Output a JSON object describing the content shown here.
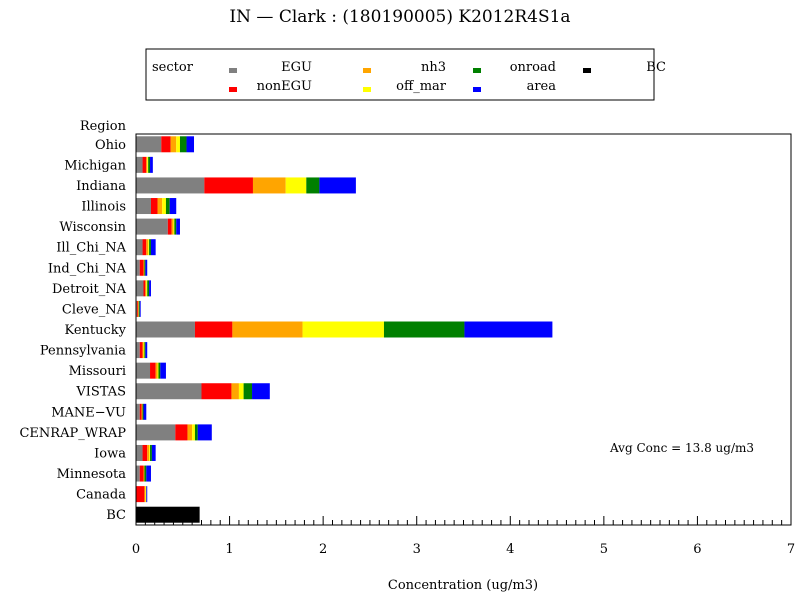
{
  "chart_data": {
    "type": "bar",
    "orientation": "horizontal",
    "stacked": true,
    "title": "IN  —  Clark : (180190005) K2012R4S1a",
    "xlabel": "Concentration  (ug/m3)",
    "ylabel": "Region",
    "xlim": [
      0,
      7
    ],
    "x_ticks": [
      0,
      1,
      2,
      3,
      4,
      5,
      6,
      7
    ],
    "grid": false,
    "legend_position": "top",
    "legend_header": "sector",
    "annotation": "Avg Conc  =  13.8 ug/m3",
    "categories": [
      "Ohio",
      "Michigan",
      "Indiana",
      "Illinois",
      "Wisconsin",
      "Ill_Chi_NA",
      "Ind_Chi_NA",
      "Detroit_NA",
      "Cleve_NA",
      "Kentucky",
      "Pennsylvania",
      "Missouri",
      "VISTAS",
      "MANE−VU",
      "CENRAP_WRAP",
      "Iowa",
      "Minnesota",
      "Canada",
      "BC"
    ],
    "series": [
      {
        "name": "EGU",
        "color": "#808080",
        "values": [
          0.27,
          0.07,
          0.73,
          0.16,
          0.34,
          0.07,
          0.04,
          0.08,
          0.01,
          0.63,
          0.04,
          0.15,
          0.7,
          0.04,
          0.42,
          0.07,
          0.04,
          0.0,
          0.0
        ]
      },
      {
        "name": "nonEGU",
        "color": "#ff0000",
        "values": [
          0.1,
          0.04,
          0.52,
          0.07,
          0.04,
          0.04,
          0.04,
          0.02,
          0.01,
          0.4,
          0.03,
          0.06,
          0.32,
          0.02,
          0.13,
          0.05,
          0.04,
          0.09,
          0.0
        ]
      },
      {
        "name": "nh3",
        "color": "#ffa500",
        "values": [
          0.06,
          0.01,
          0.35,
          0.05,
          0.02,
          0.02,
          0.01,
          0.01,
          0.01,
          0.75,
          0.01,
          0.02,
          0.08,
          0.01,
          0.05,
          0.02,
          0.01,
          0.01,
          0.0
        ]
      },
      {
        "name": "off_mar",
        "color": "#ffff00",
        "values": [
          0.04,
          0.01,
          0.22,
          0.04,
          0.01,
          0.01,
          0.0,
          0.01,
          0.0,
          0.87,
          0.01,
          0.01,
          0.05,
          0.0,
          0.03,
          0.01,
          0.0,
          0.01,
          0.0
        ]
      },
      {
        "name": "onroad",
        "color": "#008000",
        "values": [
          0.07,
          0.02,
          0.14,
          0.04,
          0.02,
          0.02,
          0.01,
          0.02,
          0.01,
          0.86,
          0.01,
          0.02,
          0.09,
          0.01,
          0.03,
          0.02,
          0.02,
          0.0,
          0.0
        ]
      },
      {
        "name": "area",
        "color": "#0000ff",
        "values": [
          0.08,
          0.03,
          0.39,
          0.07,
          0.04,
          0.05,
          0.02,
          0.02,
          0.01,
          0.94,
          0.02,
          0.06,
          0.19,
          0.03,
          0.15,
          0.04,
          0.05,
          0.01,
          0.0
        ]
      },
      {
        "name": "BC",
        "color": "#000000",
        "values": [
          0,
          0,
          0,
          0,
          0,
          0,
          0,
          0,
          0,
          0,
          0,
          0,
          0,
          0,
          0,
          0,
          0,
          0,
          0.68
        ]
      }
    ]
  }
}
